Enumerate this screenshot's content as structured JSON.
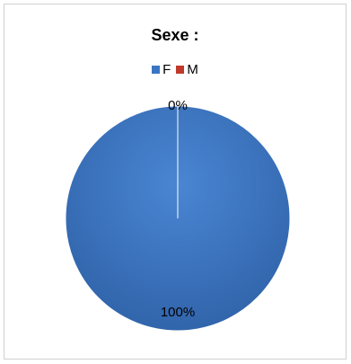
{
  "chart_data": {
    "type": "pie",
    "title": "Sexe :",
    "legend_position": "top",
    "slices": [
      {
        "name": "F",
        "value": 100,
        "label": "100%",
        "color": "#3a75c4"
      },
      {
        "name": "M",
        "value": 0,
        "label": "0%",
        "color": "#c0392b"
      }
    ]
  }
}
